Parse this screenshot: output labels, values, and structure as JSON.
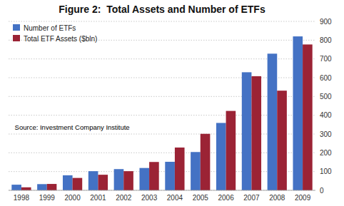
{
  "chart_data": {
    "type": "bar",
    "title": "Figure 2:  Total Assets and Number of ETFs",
    "categories": [
      "1998",
      "1999",
      "2000",
      "2001",
      "2002",
      "2003",
      "2004",
      "2005",
      "2006",
      "2007",
      "2008",
      "2009"
    ],
    "series": [
      {
        "name": "Number of ETFs",
        "color": "#4472C4",
        "values": [
          30,
          33,
          80,
          102,
          113,
          119,
          152,
          204,
          359,
          629,
          728,
          820
        ]
      },
      {
        "name": "Total ETF Assets ($bln)",
        "color": "#9B2335",
        "values": [
          16,
          34,
          66,
          83,
          102,
          151,
          228,
          301,
          423,
          608,
          531,
          777
        ]
      }
    ],
    "annotations": [
      "Source: Investment Company Institute"
    ],
    "ylim": [
      0,
      900
    ],
    "yticks": [
      0,
      100,
      200,
      300,
      400,
      500,
      600,
      700,
      800,
      900
    ],
    "grid": true,
    "legend": "upper left"
  }
}
